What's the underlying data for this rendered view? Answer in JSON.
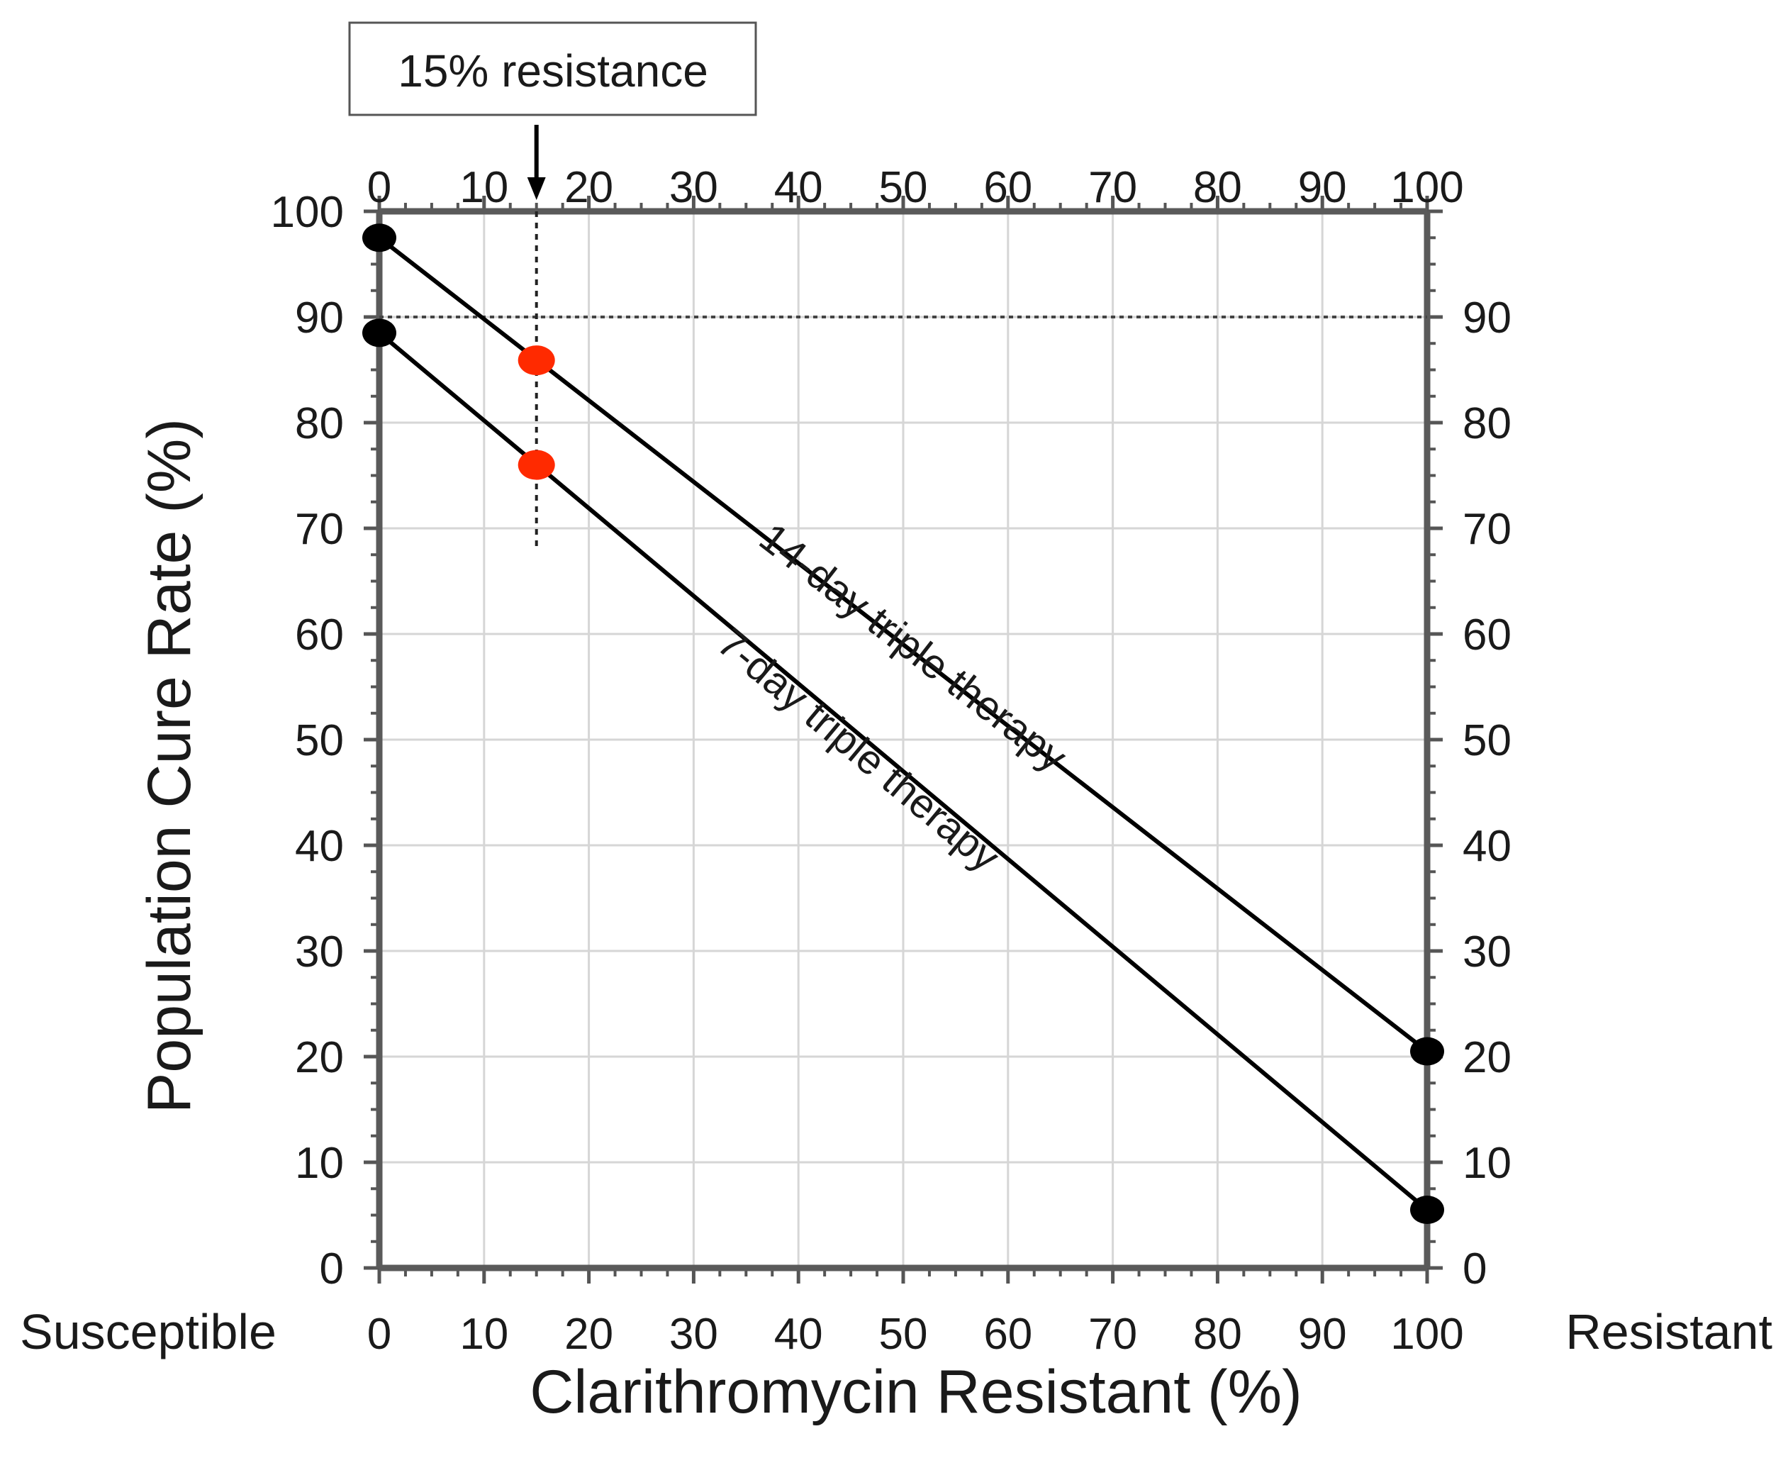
{
  "chart_data": {
    "type": "line",
    "title": "",
    "xlabel": "Clarithromycin Resistant (%)",
    "ylabel": "Population Cure Rate (%)",
    "xlim": [
      0,
      100
    ],
    "ylim": [
      0,
      100
    ],
    "x_ticks": [
      "0",
      "10",
      "20",
      "30",
      "40",
      "50",
      "60",
      "70",
      "80",
      "90",
      "100"
    ],
    "y_ticks_left": [
      "0",
      "10",
      "20",
      "30",
      "40",
      "50",
      "60",
      "70",
      "80",
      "90",
      "100"
    ],
    "y_ticks_right": [
      "0",
      "10",
      "20",
      "30",
      "40",
      "50",
      "60",
      "70",
      "80",
      "90"
    ],
    "grid": true,
    "x_end_labels": {
      "left": "Susceptible",
      "right": "Resistant"
    },
    "series": [
      {
        "name": "14-day triple therapy",
        "label": "14-day triple therapy",
        "x": [
          0,
          100
        ],
        "y": [
          97.5,
          20.5
        ],
        "color": "#000000"
      },
      {
        "name": "7-day triple therapy",
        "label": "7-day triple therapy",
        "x": [
          0,
          100
        ],
        "y": [
          88.5,
          5.5
        ],
        "color": "#000000"
      }
    ],
    "highlight_points": [
      {
        "series": "14-day triple therapy",
        "x": 15,
        "y": 85.9,
        "color": "#ff2a00"
      },
      {
        "series": "7-day triple therapy",
        "x": 15,
        "y": 76.0,
        "color": "#ff2a00"
      }
    ],
    "reference_lines": {
      "horizontal_y": 90,
      "vertical_x": 15,
      "vertical_from_y": 68
    },
    "annotation": {
      "text": "15% resistance",
      "x": 15
    }
  }
}
